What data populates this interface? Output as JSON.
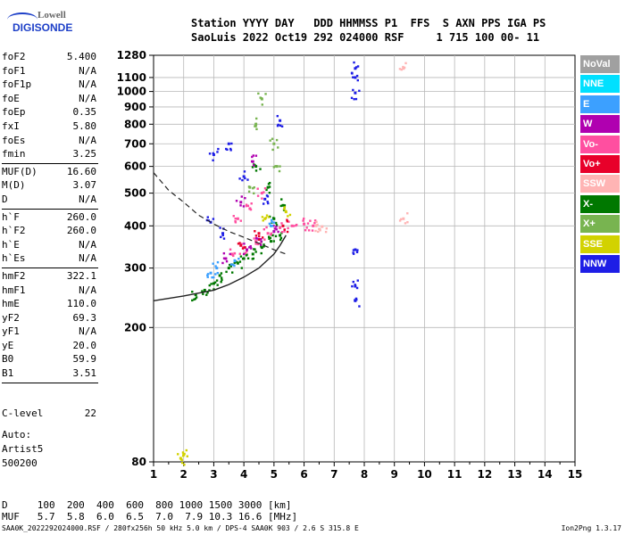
{
  "logo": {
    "top": "Lowell",
    "bottom": "DIGISONDE"
  },
  "header": {
    "line1": "Station YYYY DAY   DDD HHMMSS P1  FFS  S AXN PPS IGA PS",
    "line2": "SaoLuis 2022 Oct19 292 024000 RSF     1 715 100 00- 11"
  },
  "params_group1": [
    {
      "label": "foF2",
      "value": "5.400"
    },
    {
      "label": "foF1",
      "value": "N/A"
    },
    {
      "label": "foF1p",
      "value": "N/A"
    },
    {
      "label": "foE",
      "value": "N/A"
    },
    {
      "label": "foEp",
      "value": "0.35"
    },
    {
      "label": "fxI",
      "value": "5.80"
    },
    {
      "label": "foEs",
      "value": "N/A"
    },
    {
      "label": "fmin",
      "value": "3.25"
    }
  ],
  "params_group2": [
    {
      "label": "MUF(D)",
      "value": "16.60"
    },
    {
      "label": "M(D)",
      "value": "3.07"
    },
    {
      "label": "D",
      "value": "N/A"
    }
  ],
  "params_group3": [
    {
      "label": "h`F",
      "value": "260.0"
    },
    {
      "label": "h`F2",
      "value": "260.0"
    },
    {
      "label": "h`E",
      "value": "N/A"
    },
    {
      "label": "h`Es",
      "value": "N/A"
    }
  ],
  "params_group4": [
    {
      "label": "hmF2",
      "value": "322.1"
    },
    {
      "label": "hmF1",
      "value": "N/A"
    },
    {
      "label": "hmE",
      "value": "110.0"
    },
    {
      "label": "yF2",
      "value": "69.3"
    },
    {
      "label": "yF1",
      "value": "N/A"
    },
    {
      "label": "yE",
      "value": "20.0"
    },
    {
      "label": "B0",
      "value": "59.9"
    },
    {
      "label": "B1",
      "value": "3.51"
    }
  ],
  "c_level": {
    "label": "C-level",
    "value": "22"
  },
  "auto": [
    "Auto:",
    "Artist5",
    "500200"
  ],
  "legend": [
    {
      "name": "NoVal",
      "color": "#a0a0a0"
    },
    {
      "name": "NNE",
      "color": "#00e0ff"
    },
    {
      "name": "E",
      "color": "#3ca0ff"
    },
    {
      "name": "W",
      "color": "#b000b0"
    },
    {
      "name": "Vo-",
      "color": "#ff4fa0"
    },
    {
      "name": "Vo+",
      "color": "#e8002a"
    },
    {
      "name": "SSW",
      "color": "#ffb4b4"
    },
    {
      "name": "X-",
      "color": "#007800"
    },
    {
      "name": "X+",
      "color": "#78b450"
    },
    {
      "name": "SSE",
      "color": "#d2d200"
    },
    {
      "name": "NNW",
      "color": "#1e1ee6"
    }
  ],
  "dmuf": {
    "line1": "D     100  200  400  600  800 1000 1500 3000 [km]",
    "line2": "MUF   5.7  5.8  6.0  6.5  7.0  7.9 10.3 16.6 [MHz]"
  },
  "footer": "SAA0K_2022292024000.RSF / 280fx256h 50 kHz 5.0 km / DPS-4 SAA0K 903 / 2.6 S 315.8 E",
  "version": "Ion2Png 1.3.17",
  "chart_data": {
    "type": "scatter",
    "title": "",
    "xlabel": "",
    "ylabel": "",
    "x_unit": "MHz",
    "y_unit": "km",
    "xlim": [
      1,
      15
    ],
    "ylim": [
      80,
      1280
    ],
    "x_ticks": [
      1,
      2,
      3,
      4,
      5,
      6,
      7,
      8,
      9,
      10,
      11,
      12,
      13,
      14,
      15
    ],
    "y_ticks": [
      80,
      200,
      300,
      400,
      500,
      600,
      700,
      800,
      900,
      1000,
      1100,
      1280
    ],
    "y_scale": "log",
    "grid": true,
    "legend_position": "right",
    "series": [
      {
        "name": "X-",
        "color": "#007800",
        "points": [
          [
            3.2,
            285
          ],
          [
            3.5,
            300
          ],
          [
            3.8,
            310
          ],
          [
            4.0,
            320
          ],
          [
            4.3,
            330
          ],
          [
            4.6,
            345
          ],
          [
            4.9,
            360
          ],
          [
            5.2,
            375
          ],
          [
            3.0,
            270
          ],
          [
            2.7,
            258
          ],
          [
            2.4,
            250
          ],
          [
            5.0,
            420
          ],
          [
            5.3,
            460
          ],
          [
            4.8,
            520
          ],
          [
            4.4,
            600
          ]
        ]
      },
      {
        "name": "NNW",
        "color": "#1e1ee6",
        "points": [
          [
            7.7,
            1170
          ],
          [
            7.7,
            1100
          ],
          [
            7.7,
            990
          ],
          [
            7.7,
            340
          ],
          [
            7.7,
            265
          ],
          [
            7.7,
            240
          ],
          [
            3.0,
            650
          ],
          [
            3.5,
            700
          ],
          [
            4.0,
            560
          ],
          [
            5.2,
            820
          ],
          [
            4.7,
            480
          ],
          [
            2.9,
            410
          ],
          [
            3.3,
            380
          ]
        ]
      },
      {
        "name": "Vo-",
        "color": "#ff4fa0",
        "points": [
          [
            3.6,
            330
          ],
          [
            4.0,
            345
          ],
          [
            4.4,
            360
          ],
          [
            4.8,
            380
          ],
          [
            5.2,
            395
          ],
          [
            5.6,
            400
          ],
          [
            6.0,
            405
          ],
          [
            6.3,
            400
          ],
          [
            4.2,
            450
          ],
          [
            4.6,
            500
          ],
          [
            3.8,
            420
          ]
        ]
      },
      {
        "name": "X+",
        "color": "#78b450",
        "points": [
          [
            4.6,
            950
          ],
          [
            5.0,
            700
          ],
          [
            4.4,
            800
          ],
          [
            5.1,
            600
          ],
          [
            4.2,
            520
          ]
        ]
      },
      {
        "name": "W",
        "color": "#b000b0",
        "points": [
          [
            3.4,
            320
          ],
          [
            4.1,
            340
          ],
          [
            4.5,
            365
          ],
          [
            5.0,
            385
          ],
          [
            3.9,
            470
          ],
          [
            4.3,
            620
          ]
        ]
      },
      {
        "name": "E",
        "color": "#3ca0ff",
        "points": [
          [
            3.1,
            300
          ],
          [
            3.7,
            315
          ],
          [
            4.9,
            400
          ],
          [
            2.9,
            290
          ]
        ]
      },
      {
        "name": "SSE",
        "color": "#d2d200",
        "points": [
          [
            2.0,
            84
          ],
          [
            1.9,
            82
          ],
          [
            4.7,
            420
          ],
          [
            5.4,
            440
          ]
        ]
      },
      {
        "name": "Vo+",
        "color": "#e8002a",
        "points": [
          [
            4.5,
            380
          ],
          [
            5.3,
            400
          ],
          [
            3.9,
            350
          ]
        ]
      },
      {
        "name": "SSW",
        "color": "#ffb4b4",
        "points": [
          [
            6.4,
            400
          ],
          [
            6.6,
            398
          ],
          [
            9.3,
            1170
          ],
          [
            9.3,
            420
          ]
        ]
      }
    ],
    "profile_curve": [
      [
        1,
        240
      ],
      [
        2,
        248
      ],
      [
        3,
        258
      ],
      [
        3.5,
        268
      ],
      [
        4,
        282
      ],
      [
        4.5,
        300
      ],
      [
        5,
        330
      ],
      [
        5.2,
        350
      ],
      [
        5.4,
        375
      ]
    ],
    "dashed_curve": [
      [
        1,
        575
      ],
      [
        1.5,
        510
      ],
      [
        2,
        470
      ],
      [
        2.5,
        430
      ],
      [
        3,
        405
      ],
      [
        3.5,
        385
      ],
      [
        4,
        370
      ],
      [
        4.5,
        355
      ],
      [
        5,
        340
      ],
      [
        5.4,
        330
      ]
    ]
  }
}
